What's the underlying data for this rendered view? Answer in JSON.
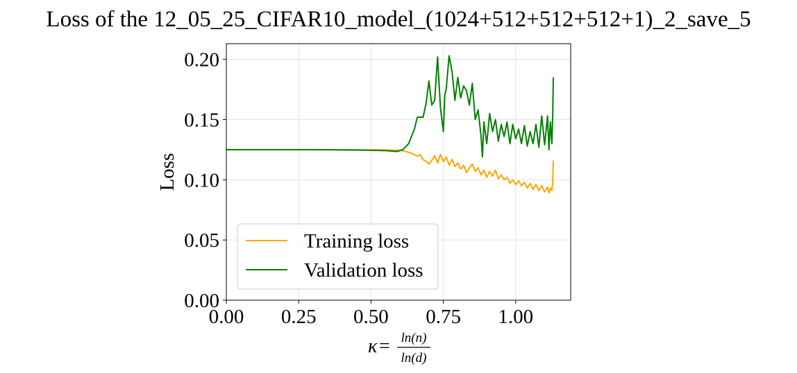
{
  "chart_data": {
    "type": "line",
    "title": "Loss of the 12_05_25_CIFAR10_model_(1024+512+512+512+1)_2_save_5",
    "ylabel": "Loss",
    "xlabel": {
      "prefix": "κ",
      "equals": "=",
      "numerator": "ln(n)",
      "denominator": "ln(d)"
    },
    "xlim": [
      0.0,
      1.19
    ],
    "ylim": [
      0.0,
      0.213
    ],
    "xticks": [
      0.0,
      0.25,
      0.5,
      0.75,
      1.0
    ],
    "xtick_labels": [
      "0.00",
      "0.25",
      "0.50",
      "0.75",
      "1.00"
    ],
    "yticks": [
      0.0,
      0.05,
      0.1,
      0.15,
      0.2
    ],
    "ytick_labels": [
      "0.00",
      "0.05",
      "0.10",
      "0.15",
      "0.20"
    ],
    "grid": true,
    "legend_position": "lower-left",
    "series": [
      {
        "name": "Training loss",
        "color": "#ffa500",
        "points": [
          [
            0.0,
            0.125
          ],
          [
            0.1,
            0.125
          ],
          [
            0.2,
            0.125
          ],
          [
            0.3,
            0.125
          ],
          [
            0.4,
            0.1249
          ],
          [
            0.5,
            0.1248
          ],
          [
            0.55,
            0.1247
          ],
          [
            0.6,
            0.1245
          ],
          [
            0.62,
            0.1235
          ],
          [
            0.64,
            0.122
          ],
          [
            0.66,
            0.1195
          ],
          [
            0.67,
            0.121
          ],
          [
            0.68,
            0.1165
          ],
          [
            0.69,
            0.1155
          ],
          [
            0.7,
            0.113
          ],
          [
            0.71,
            0.116
          ],
          [
            0.72,
            0.12
          ],
          [
            0.73,
            0.114
          ],
          [
            0.74,
            0.121
          ],
          [
            0.75,
            0.115
          ],
          [
            0.76,
            0.119
          ],
          [
            0.77,
            0.112
          ],
          [
            0.78,
            0.117
          ],
          [
            0.79,
            0.111
          ],
          [
            0.8,
            0.114
          ],
          [
            0.81,
            0.109
          ],
          [
            0.82,
            0.112
          ],
          [
            0.83,
            0.106
          ],
          [
            0.84,
            0.11
          ],
          [
            0.85,
            0.113
          ],
          [
            0.86,
            0.107
          ],
          [
            0.87,
            0.11
          ],
          [
            0.88,
            0.104
          ],
          [
            0.89,
            0.108
          ],
          [
            0.9,
            0.102
          ],
          [
            0.91,
            0.107
          ],
          [
            0.92,
            0.103
          ],
          [
            0.93,
            0.108
          ],
          [
            0.94,
            0.101
          ],
          [
            0.95,
            0.104
          ],
          [
            0.96,
            0.1
          ],
          [
            0.97,
            0.102
          ],
          [
            0.98,
            0.097
          ],
          [
            0.99,
            0.1
          ],
          [
            1.0,
            0.096
          ],
          [
            1.01,
            0.099
          ],
          [
            1.02,
            0.095
          ],
          [
            1.03,
            0.098
          ],
          [
            1.04,
            0.093
          ],
          [
            1.05,
            0.097
          ],
          [
            1.06,
            0.092
          ],
          [
            1.07,
            0.096
          ],
          [
            1.08,
            0.091
          ],
          [
            1.09,
            0.095
          ],
          [
            1.1,
            0.09
          ],
          [
            1.11,
            0.094
          ],
          [
            1.115,
            0.089
          ],
          [
            1.12,
            0.093
          ],
          [
            1.125,
            0.091
          ],
          [
            1.128,
            0.1
          ],
          [
            1.13,
            0.116
          ]
        ]
      },
      {
        "name": "Validation loss",
        "color": "#008000",
        "points": [
          [
            0.0,
            0.125
          ],
          [
            0.1,
            0.125
          ],
          [
            0.2,
            0.125
          ],
          [
            0.3,
            0.125
          ],
          [
            0.4,
            0.1248
          ],
          [
            0.5,
            0.1245
          ],
          [
            0.55,
            0.1242
          ],
          [
            0.59,
            0.1235
          ],
          [
            0.61,
            0.125
          ],
          [
            0.63,
            0.13
          ],
          [
            0.65,
            0.142
          ],
          [
            0.66,
            0.152
          ],
          [
            0.67,
            0.152
          ],
          [
            0.68,
            0.152
          ],
          [
            0.69,
            0.163
          ],
          [
            0.7,
            0.182
          ],
          [
            0.71,
            0.162
          ],
          [
            0.72,
            0.166
          ],
          [
            0.73,
            0.202
          ],
          [
            0.74,
            0.16
          ],
          [
            0.75,
            0.14
          ],
          [
            0.755,
            0.17
          ],
          [
            0.76,
            0.176
          ],
          [
            0.77,
            0.203
          ],
          [
            0.78,
            0.19
          ],
          [
            0.79,
            0.166
          ],
          [
            0.8,
            0.185
          ],
          [
            0.81,
            0.168
          ],
          [
            0.82,
            0.178
          ],
          [
            0.83,
            0.174
          ],
          [
            0.84,
            0.162
          ],
          [
            0.85,
            0.18
          ],
          [
            0.86,
            0.15
          ],
          [
            0.87,
            0.158
          ],
          [
            0.88,
            0.137
          ],
          [
            0.885,
            0.119
          ],
          [
            0.89,
            0.148
          ],
          [
            0.9,
            0.13
          ],
          [
            0.91,
            0.155
          ],
          [
            0.92,
            0.14
          ],
          [
            0.93,
            0.15
          ],
          [
            0.94,
            0.132
          ],
          [
            0.95,
            0.146
          ],
          [
            0.96,
            0.136
          ],
          [
            0.97,
            0.148
          ],
          [
            0.98,
            0.13
          ],
          [
            0.99,
            0.146
          ],
          [
            1.0,
            0.134
          ],
          [
            1.01,
            0.142
          ],
          [
            1.02,
            0.13
          ],
          [
            1.03,
            0.145
          ],
          [
            1.04,
            0.128
          ],
          [
            1.05,
            0.14
          ],
          [
            1.06,
            0.13
          ],
          [
            1.07,
            0.146
          ],
          [
            1.08,
            0.127
          ],
          [
            1.09,
            0.153
          ],
          [
            1.1,
            0.129
          ],
          [
            1.11,
            0.153
          ],
          [
            1.115,
            0.125
          ],
          [
            1.12,
            0.148
          ],
          [
            1.125,
            0.13
          ],
          [
            1.128,
            0.155
          ],
          [
            1.13,
            0.185
          ]
        ]
      }
    ]
  }
}
